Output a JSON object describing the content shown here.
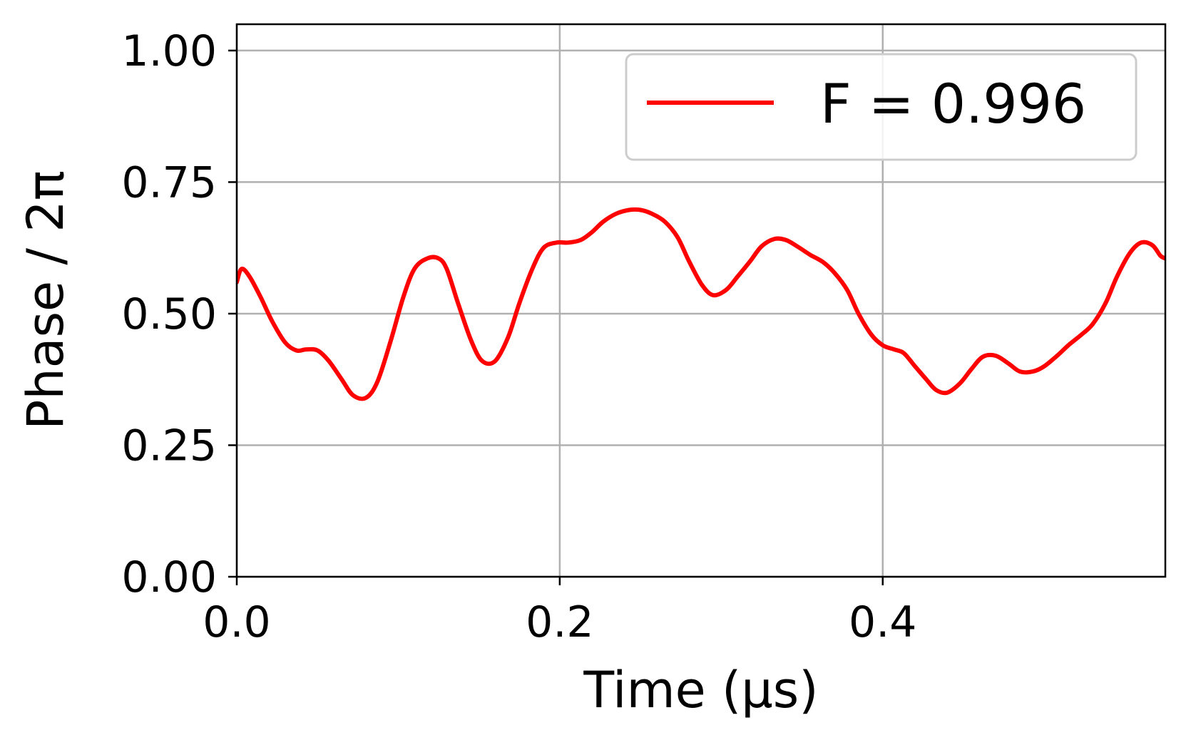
{
  "chart_data": {
    "type": "line",
    "xlabel": "Time (μs)",
    "ylabel": "Phase / 2π",
    "xlim": [
      0.0,
      0.575
    ],
    "ylim": [
      0.0,
      1.05
    ],
    "xticks": [
      0.0,
      0.2,
      0.4
    ],
    "xtick_labels": [
      "0.0",
      "0.2",
      "0.4"
    ],
    "yticks": [
      0.0,
      0.25,
      0.5,
      0.75,
      1.0
    ],
    "ytick_labels": [
      "0.00",
      "0.25",
      "0.50",
      "0.75",
      "1.00"
    ],
    "grid": true,
    "legend_position": "top-right",
    "series": [
      {
        "name": "F = 0.996",
        "color": "#ff0000",
        "x": [
          0.0,
          0.003,
          0.008,
          0.015,
          0.022,
          0.03,
          0.037,
          0.043,
          0.05,
          0.057,
          0.065,
          0.072,
          0.08,
          0.087,
          0.095,
          0.103,
          0.11,
          0.118,
          0.125,
          0.13,
          0.137,
          0.145,
          0.152,
          0.16,
          0.168,
          0.175,
          0.183,
          0.19,
          0.198,
          0.205,
          0.213,
          0.22,
          0.227,
          0.235,
          0.243,
          0.25,
          0.257,
          0.265,
          0.273,
          0.28,
          0.288,
          0.295,
          0.303,
          0.31,
          0.318,
          0.325,
          0.333,
          0.34,
          0.347,
          0.355,
          0.363,
          0.37,
          0.378,
          0.385,
          0.393,
          0.4,
          0.407,
          0.413,
          0.42,
          0.427,
          0.433,
          0.44,
          0.448,
          0.455,
          0.462,
          0.47,
          0.478,
          0.485,
          0.493,
          0.5,
          0.508,
          0.515,
          0.523,
          0.53,
          0.538,
          0.545,
          0.553,
          0.56,
          0.567,
          0.572,
          0.575
        ],
        "y": [
          0.56,
          0.585,
          0.57,
          0.53,
          0.485,
          0.445,
          0.43,
          0.432,
          0.43,
          0.41,
          0.375,
          0.345,
          0.34,
          0.37,
          0.445,
          0.53,
          0.585,
          0.605,
          0.605,
          0.585,
          0.52,
          0.45,
          0.41,
          0.41,
          0.455,
          0.52,
          0.585,
          0.625,
          0.635,
          0.635,
          0.64,
          0.655,
          0.675,
          0.69,
          0.697,
          0.697,
          0.69,
          0.675,
          0.645,
          0.6,
          0.555,
          0.535,
          0.545,
          0.57,
          0.6,
          0.628,
          0.642,
          0.64,
          0.628,
          0.612,
          0.598,
          0.578,
          0.545,
          0.5,
          0.46,
          0.44,
          0.432,
          0.425,
          0.4,
          0.375,
          0.355,
          0.35,
          0.368,
          0.395,
          0.418,
          0.42,
          0.405,
          0.39,
          0.39,
          0.4,
          0.42,
          0.44,
          0.46,
          0.48,
          0.52,
          0.57,
          0.615,
          0.635,
          0.63,
          0.61,
          0.605
        ]
      }
    ]
  }
}
